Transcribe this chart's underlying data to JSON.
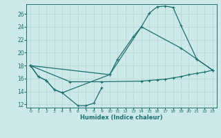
{
  "xlabel": "Humidex (Indice chaleur)",
  "bg_color": "#cce8e8",
  "line_color": "#1a7070",
  "grid_color": "#b8d8d8",
  "ylim": [
    11.5,
    27.5
  ],
  "yticks": [
    12,
    14,
    16,
    18,
    20,
    22,
    24,
    26
  ],
  "xlim": [
    -0.5,
    23.5
  ],
  "line1_x": [
    0,
    1,
    2,
    3,
    4,
    6,
    7,
    8,
    9
  ],
  "line1_y": [
    18.0,
    16.3,
    15.7,
    14.3,
    13.8,
    11.8,
    11.8,
    12.2,
    14.6
  ],
  "line2_x": [
    0,
    1,
    2,
    3,
    4,
    10,
    11,
    13,
    14,
    19,
    21,
    23
  ],
  "line2_y": [
    18.0,
    16.3,
    15.7,
    14.3,
    13.8,
    16.6,
    19.0,
    22.5,
    24.0,
    20.7,
    19.0,
    17.3
  ],
  "line3_x": [
    0,
    10,
    14,
    15,
    16,
    17,
    18,
    19,
    21,
    23
  ],
  "line3_y": [
    18.0,
    16.6,
    24.0,
    26.1,
    27.1,
    27.2,
    27.0,
    24.2,
    19.0,
    17.3
  ],
  "line4_x": [
    0,
    5,
    9,
    14,
    15,
    16,
    17,
    18,
    19,
    20,
    21,
    22,
    23
  ],
  "line4_y": [
    18.0,
    15.5,
    15.5,
    15.6,
    15.7,
    15.8,
    15.9,
    16.1,
    16.3,
    16.6,
    16.8,
    17.0,
    17.3
  ]
}
